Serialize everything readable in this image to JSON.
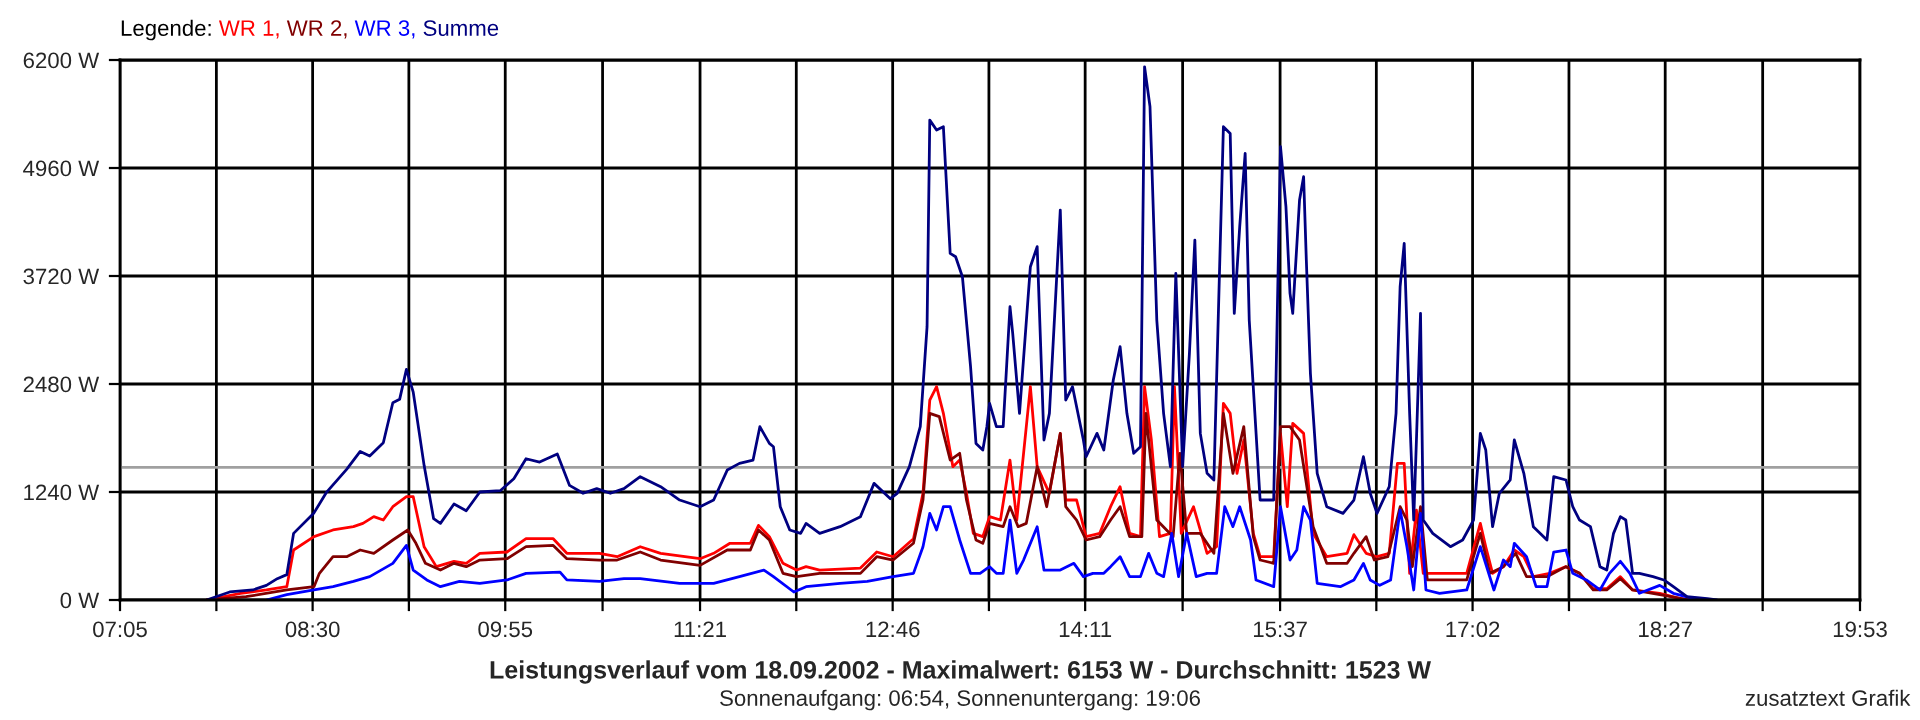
{
  "chart_data": {
    "type": "line",
    "title": "Leistungsverlauf vom 18.09.2002 - Maximalwert: 6153 W - Durchschnitt: 1523 W",
    "subtitle": "Sonnenaufgang: 06:54, Sonnenuntergang: 19:06",
    "annotations": [
      "zusatztext Grafik"
    ],
    "legend_title": "Legende:",
    "legend": "top left",
    "grid": true,
    "line_style": "solid",
    "xlim": [
      7.083,
      19.883
    ],
    "ylim": [
      0,
      6200
    ],
    "xticks": [
      {
        "value": 7.083,
        "label": "07:05"
      },
      {
        "value": 7.792,
        "label": null
      },
      {
        "value": 8.5,
        "label": "08:30"
      },
      {
        "value": 9.208,
        "label": null
      },
      {
        "value": 9.917,
        "label": "09:55"
      },
      {
        "value": 10.633,
        "label": null
      },
      {
        "value": 11.35,
        "label": "11:21"
      },
      {
        "value": 12.058,
        "label": null
      },
      {
        "value": 12.767,
        "label": "12:46"
      },
      {
        "value": 13.475,
        "label": null
      },
      {
        "value": 14.183,
        "label": "14:11"
      },
      {
        "value": 14.9,
        "label": null
      },
      {
        "value": 15.617,
        "label": "15:37"
      },
      {
        "value": 16.325,
        "label": null
      },
      {
        "value": 17.033,
        "label": "17:02"
      },
      {
        "value": 17.742,
        "label": null
      },
      {
        "value": 18.45,
        "label": "18:27"
      },
      {
        "value": 19.167,
        "label": null
      },
      {
        "value": 19.883,
        "label": "19:53"
      }
    ],
    "yticks": [
      {
        "value": 0,
        "label": "0 W"
      },
      {
        "value": 1240,
        "label": "1240 W"
      },
      {
        "value": 2480,
        "label": "2480 W"
      },
      {
        "value": 3720,
        "label": "3720 W"
      },
      {
        "value": 4960,
        "label": "4960 W"
      },
      {
        "value": 6200,
        "label": "6200 W"
      }
    ],
    "ref_lines": [
      {
        "axis": "y",
        "value": 1523,
        "label": null,
        "color": "#a0a0a0"
      }
    ],
    "series": [
      {
        "name": "WR 1,",
        "color": "#ff0000",
        "x": [
          7.72,
          7.97,
          8.16,
          8.31,
          8.36,
          8.51,
          8.65,
          8.8,
          8.87,
          8.95,
          9.02,
          9.09,
          9.19,
          9.24,
          9.32,
          9.41,
          9.54,
          9.63,
          9.73,
          9.93,
          10.07,
          10.27,
          10.37,
          10.61,
          10.74,
          10.91,
          11.06,
          11.35,
          11.45,
          11.57,
          11.72,
          11.78,
          11.86,
          11.96,
          12.06,
          12.13,
          12.23,
          12.53,
          12.65,
          12.77,
          12.92,
          12.99,
          13.04,
          13.09,
          13.14,
          13.21,
          13.26,
          13.31,
          13.36,
          13.43,
          13.48,
          13.56,
          13.63,
          13.68,
          13.78,
          13.83,
          13.92,
          14.0,
          14.04,
          14.12,
          14.19,
          14.29,
          14.37,
          14.44,
          14.51,
          14.59,
          14.62,
          14.67,
          14.73,
          14.81,
          14.84,
          14.89,
          14.98,
          15.08,
          15.15,
          15.2,
          15.25,
          15.3,
          15.35,
          15.42,
          15.47,
          15.57,
          15.62,
          15.67,
          15.71,
          15.79,
          15.86,
          15.96,
          16.11,
          16.16,
          16.25,
          16.33,
          16.42,
          16.48,
          16.53,
          16.57,
          16.62,
          16.67,
          16.77,
          16.99,
          17.09,
          17.13,
          17.18,
          17.26,
          17.34,
          17.41,
          17.48,
          17.6,
          17.72,
          17.82,
          17.92,
          18.02,
          18.12,
          18.21,
          18.41,
          18.56,
          18.63
        ],
        "values": [
          0,
          77,
          115,
          153,
          574,
          727,
          804,
          842,
          880,
          957,
          918,
          1071,
          1186,
          1186,
          612,
          383,
          444,
          421,
          536,
          551,
          704,
          704,
          536,
          536,
          497,
          612,
          536,
          474,
          536,
          651,
          651,
          857,
          727,
          421,
          344,
          383,
          344,
          367,
          551,
          497,
          704,
          1225,
          2296,
          2449,
          2143,
          1531,
          1607,
          1225,
          765,
          727,
          957,
          918,
          1607,
          918,
          2449,
          1531,
          1225,
          1913,
          1148,
          1148,
          727,
          765,
          1071,
          1301,
          765,
          727,
          2449,
          1837,
          727,
          765,
          2449,
          765,
          1071,
          536,
          612,
          2258,
          2143,
          1454,
          1837,
          765,
          497,
          497,
          1913,
          1071,
          2028,
          1913,
          765,
          497,
          536,
          750,
          536,
          497,
          536,
          1569,
          1569,
          306,
          1033,
          306,
          306,
          306,
          880,
          612,
          306,
          383,
          574,
          497,
          268,
          306,
          383,
          306,
          130,
          130,
          268,
          115,
          77,
          15,
          0
        ]
      },
      {
        "name": "WR 2,",
        "color": "#800000",
        "x": [
          7.72,
          8.01,
          8.31,
          8.51,
          8.55,
          8.65,
          8.75,
          8.85,
          8.95,
          9.09,
          9.2,
          9.26,
          9.33,
          9.44,
          9.54,
          9.63,
          9.73,
          9.93,
          10.07,
          10.27,
          10.37,
          10.61,
          10.74,
          10.91,
          11.06,
          11.35,
          11.55,
          11.72,
          11.78,
          11.86,
          11.96,
          12.06,
          12.23,
          12.53,
          12.65,
          12.77,
          12.92,
          12.99,
          13.04,
          13.11,
          13.19,
          13.26,
          13.31,
          13.38,
          13.43,
          13.48,
          13.58,
          13.63,
          13.69,
          13.75,
          13.83,
          13.9,
          14.0,
          14.04,
          14.12,
          14.19,
          14.29,
          14.37,
          14.44,
          14.51,
          14.6,
          14.63,
          14.71,
          14.83,
          14.88,
          14.93,
          15.03,
          15.13,
          15.2,
          15.27,
          15.35,
          15.42,
          15.47,
          15.57,
          15.62,
          15.69,
          15.76,
          15.86,
          15.96,
          16.11,
          16.16,
          16.25,
          16.31,
          16.41,
          16.5,
          16.55,
          16.59,
          16.65,
          16.7,
          16.99,
          17.09,
          17.16,
          17.26,
          17.35,
          17.43,
          17.58,
          17.72,
          17.82,
          17.92,
          18.02,
          18.12,
          18.21,
          18.41,
          18.63
        ],
        "values": [
          0,
          38,
          115,
          153,
          306,
          497,
          497,
          574,
          536,
          689,
          804,
          651,
          421,
          344,
          421,
          383,
          459,
          474,
          612,
          627,
          474,
          459,
          459,
          551,
          459,
          398,
          574,
          574,
          804,
          689,
          306,
          268,
          306,
          306,
          497,
          459,
          651,
          1148,
          2143,
          2105,
          1607,
          1684,
          1148,
          689,
          651,
          880,
          842,
          1071,
          842,
          880,
          1531,
          1071,
          1913,
          1071,
          918,
          689,
          727,
          918,
          1071,
          727,
          727,
          2143,
          918,
          727,
          1684,
          765,
          765,
          536,
          2143,
          1454,
          1990,
          727,
          459,
          421,
          1990,
          1990,
          1837,
          842,
          421,
          421,
          536,
          727,
          459,
          497,
          1071,
          918,
          383,
          1071,
          230,
          230,
          765,
          306,
          383,
          536,
          268,
          268,
          383,
          306,
          115,
          115,
          245,
          115,
          61,
          0
        ]
      },
      {
        "name": "WR 3,",
        "color": "#0000ff",
        "x": [
          8.16,
          8.31,
          8.51,
          8.65,
          8.8,
          8.92,
          9.09,
          9.19,
          9.24,
          9.34,
          9.44,
          9.58,
          9.73,
          9.93,
          10.07,
          10.32,
          10.37,
          10.61,
          10.79,
          10.91,
          11.2,
          11.45,
          11.64,
          11.82,
          11.89,
          12.04,
          12.13,
          12.38,
          12.58,
          12.77,
          12.92,
          12.99,
          13.04,
          13.09,
          13.14,
          13.19,
          13.26,
          13.34,
          13.41,
          13.48,
          13.53,
          13.58,
          13.63,
          13.68,
          13.73,
          13.83,
          13.88,
          14,
          14.1,
          14.17,
          14.24,
          14.32,
          14.37,
          14.44,
          14.51,
          14.59,
          14.65,
          14.71,
          14.76,
          14.82,
          14.87,
          14.93,
          15,
          15.08,
          15.15,
          15.21,
          15.27,
          15.32,
          15.4,
          15.44,
          15.57,
          15.62,
          15.69,
          15.74,
          15.79,
          15.84,
          15.89,
          16.06,
          16.16,
          16.23,
          16.28,
          16.35,
          16.43,
          16.5,
          16.55,
          16.6,
          16.65,
          16.69,
          16.79,
          16.99,
          17.09,
          17.19,
          17.26,
          17.31,
          17.34,
          17.43,
          17.5,
          17.58,
          17.63,
          17.72,
          17.77,
          17.87,
          17.97,
          18.04,
          18.12,
          18.19,
          18.26,
          18.41,
          18.51,
          18.66,
          18.8
        ],
        "values": [
          0,
          61,
          115,
          153,
          214,
          268,
          421,
          627,
          344,
          230,
          153,
          214,
          191,
          230,
          306,
          321,
          230,
          214,
          245,
          245,
          191,
          191,
          268,
          344,
          268,
          92,
          153,
          191,
          214,
          268,
          306,
          612,
          995,
          804,
          1071,
          1071,
          689,
          306,
          306,
          383,
          306,
          306,
          918,
          306,
          459,
          842,
          344,
          344,
          421,
          268,
          306,
          306,
          383,
          497,
          268,
          268,
          536,
          306,
          268,
          765,
          268,
          765,
          268,
          306,
          306,
          1071,
          842,
          1071,
          689,
          230,
          153,
          1071,
          459,
          574,
          1071,
          918,
          191,
          153,
          230,
          421,
          230,
          168,
          230,
          1033,
          612,
          115,
          995,
          115,
          77,
          115,
          612,
          115,
          459,
          383,
          651,
          497,
          153,
          153,
          551,
          574,
          306,
          230,
          115,
          306,
          444,
          306,
          77,
          168,
          77,
          15,
          0
        ]
      },
      {
        "name": "Summe",
        "color": "#000080",
        "x": [
          7.72,
          7.89,
          8.06,
          8.16,
          8.24,
          8.31,
          8.36,
          8.51,
          8.6,
          8.75,
          8.85,
          8.92,
          9.02,
          9.09,
          9.14,
          9.19,
          9.24,
          9.32,
          9.39,
          9.44,
          9.54,
          9.63,
          9.73,
          9.88,
          9.98,
          10.07,
          10.17,
          10.3,
          10.39,
          10.49,
          10.59,
          10.69,
          10.79,
          10.91,
          11.06,
          11.2,
          11.35,
          11.45,
          11.55,
          11.64,
          11.74,
          11.79,
          11.86,
          11.89,
          11.94,
          12.01,
          12.09,
          12.13,
          12.23,
          12.38,
          12.53,
          12.63,
          12.75,
          12.8,
          12.89,
          12.97,
          13.02,
          13.04,
          13.09,
          13.14,
          13.19,
          13.23,
          13.28,
          13.34,
          13.38,
          13.43,
          13.46,
          13.48,
          13.53,
          13.58,
          13.63,
          13.65,
          13.7,
          13.78,
          13.83,
          13.88,
          13.92,
          14.0,
          14.04,
          14.09,
          14.17,
          14.19,
          14.27,
          14.32,
          14.39,
          14.44,
          14.49,
          14.54,
          14.59,
          14.62,
          14.66,
          14.71,
          14.76,
          14.81,
          14.85,
          14.9,
          14.95,
          14.99,
          15.03,
          15.08,
          15.13,
          15.2,
          15.25,
          15.28,
          15.32,
          15.36,
          15.39,
          15.47,
          15.57,
          15.62,
          15.66,
          15.69,
          15.71,
          15.76,
          15.79,
          15.81,
          15.84,
          15.89,
          15.96,
          16.08,
          16.16,
          16.23,
          16.28,
          16.33,
          16.42,
          16.47,
          16.5,
          16.53,
          16.57,
          16.6,
          16.62,
          16.65,
          16.67,
          16.74,
          16.87,
          16.96,
          17.04,
          17.09,
          17.13,
          17.18,
          17.23,
          17.31,
          17.34,
          17.41,
          17.48,
          17.58,
          17.63,
          17.72,
          17.77,
          17.82,
          17.9,
          17.97,
          18.02,
          18.07,
          18.12,
          18.16,
          18.21,
          18.26,
          18.36,
          18.44,
          18.51,
          18.61,
          18.76,
          18.83
        ],
        "values": [
          0,
          92,
          115,
          168,
          245,
          291,
          765,
          1000,
          1232,
          1500,
          1706,
          1653,
          1806,
          2265,
          2304,
          2648,
          2387,
          1546,
          934,
          880,
          1102,
          1025,
          1240,
          1255,
          1393,
          1622,
          1584,
          1676,
          1316,
          1225,
          1279,
          1225,
          1279,
          1416,
          1301,
          1148,
          1071,
          1148,
          1492,
          1569,
          1607,
          1990,
          1798,
          1760,
          1071,
          804,
          765,
          880,
          765,
          842,
          957,
          1339,
          1163,
          1225,
          1531,
          1990,
          3138,
          5510,
          5396,
          5434,
          3980,
          3941,
          3712,
          2679,
          1798,
          1722,
          1990,
          2258,
          1990,
          1990,
          3367,
          3061,
          2143,
          3827,
          4057,
          1837,
          2143,
          4477,
          2296,
          2449,
          1837,
          1645,
          1913,
          1722,
          2526,
          2908,
          2143,
          1684,
          1760,
          6122,
          5664,
          3214,
          2143,
          1531,
          3750,
          1531,
          2832,
          4133,
          1913,
          1454,
          1378,
          5434,
          5357,
          3291,
          4286,
          5128,
          3214,
          1148,
          1148,
          5204,
          4516,
          3521,
          3291,
          4592,
          4860,
          3903,
          2602,
          1454,
          1071,
          995,
          1148,
          1645,
          1225,
          995,
          1301,
          2143,
          3597,
          4095,
          2143,
          918,
          1837,
          3291,
          918,
          765,
          612,
          689,
          918,
          1913,
          1722,
          842,
          1225,
          1378,
          1837,
          1454,
          842,
          689,
          1416,
          1378,
          1071,
          918,
          842,
          383,
          344,
          765,
          957,
          918,
          306,
          306,
          268,
          230,
          153,
          38,
          15,
          0
        ]
      }
    ]
  }
}
